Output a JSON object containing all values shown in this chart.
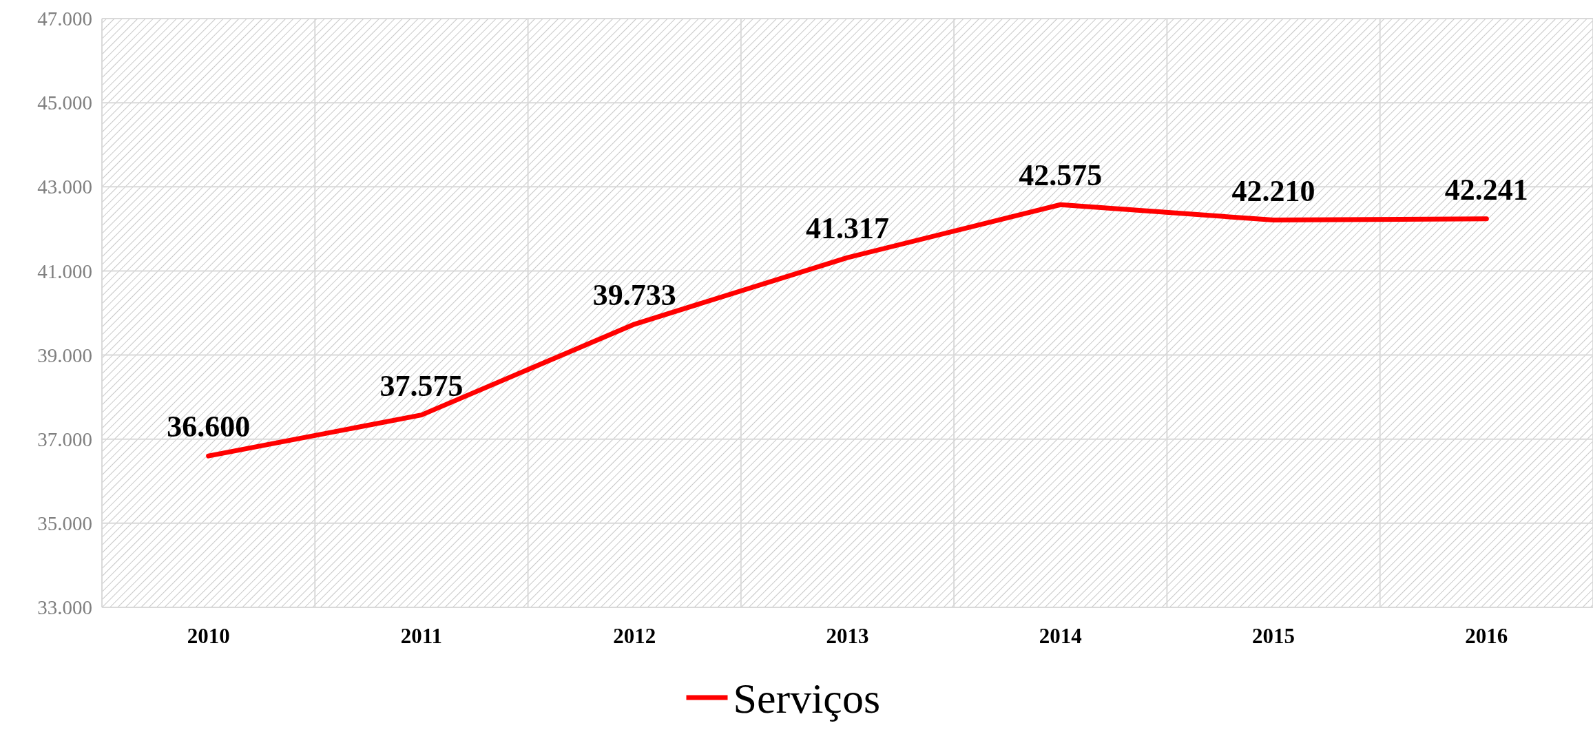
{
  "chart_data": {
    "type": "line",
    "categories": [
      "2010",
      "2011",
      "2012",
      "2013",
      "2014",
      "2015",
      "2016"
    ],
    "series": [
      {
        "name": "Serviços",
        "color": "#ff0000",
        "values": [
          36600,
          37575,
          39733,
          41317,
          42575,
          42210,
          42241
        ],
        "value_labels": [
          "36.600",
          "37.575",
          "39.733",
          "41.317",
          "42.575",
          "42.210",
          "42.241"
        ]
      }
    ],
    "ylim": [
      33000,
      47000
    ],
    "yticks": [
      {
        "value": 33000,
        "label": "33.000"
      },
      {
        "value": 35000,
        "label": "35.000"
      },
      {
        "value": 37000,
        "label": "37.000"
      },
      {
        "value": 39000,
        "label": "39.000"
      },
      {
        "value": 41000,
        "label": "41.000"
      },
      {
        "value": 43000,
        "label": "43.000"
      },
      {
        "value": 45000,
        "label": "45.000"
      },
      {
        "value": 47000,
        "label": "47.000"
      }
    ],
    "grid": true,
    "legend": "bottom",
    "marker": "none",
    "line_style": "solid"
  }
}
